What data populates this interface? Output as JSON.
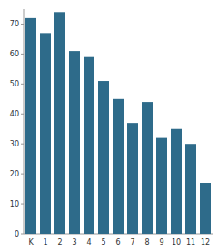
{
  "chart_data": {
    "type": "bar",
    "categories": [
      "K",
      "1",
      "2",
      "3",
      "4",
      "5",
      "6",
      "7",
      "8",
      "9",
      "10",
      "11",
      "12"
    ],
    "values": [
      72,
      67,
      74,
      61,
      59,
      51,
      45,
      37,
      44,
      32,
      35,
      30,
      17
    ],
    "color": "#2e6b8a",
    "ylim": [
      0,
      75
    ],
    "yticks": [
      0,
      10,
      20,
      30,
      40,
      50,
      60,
      70
    ],
    "grid": false
  }
}
